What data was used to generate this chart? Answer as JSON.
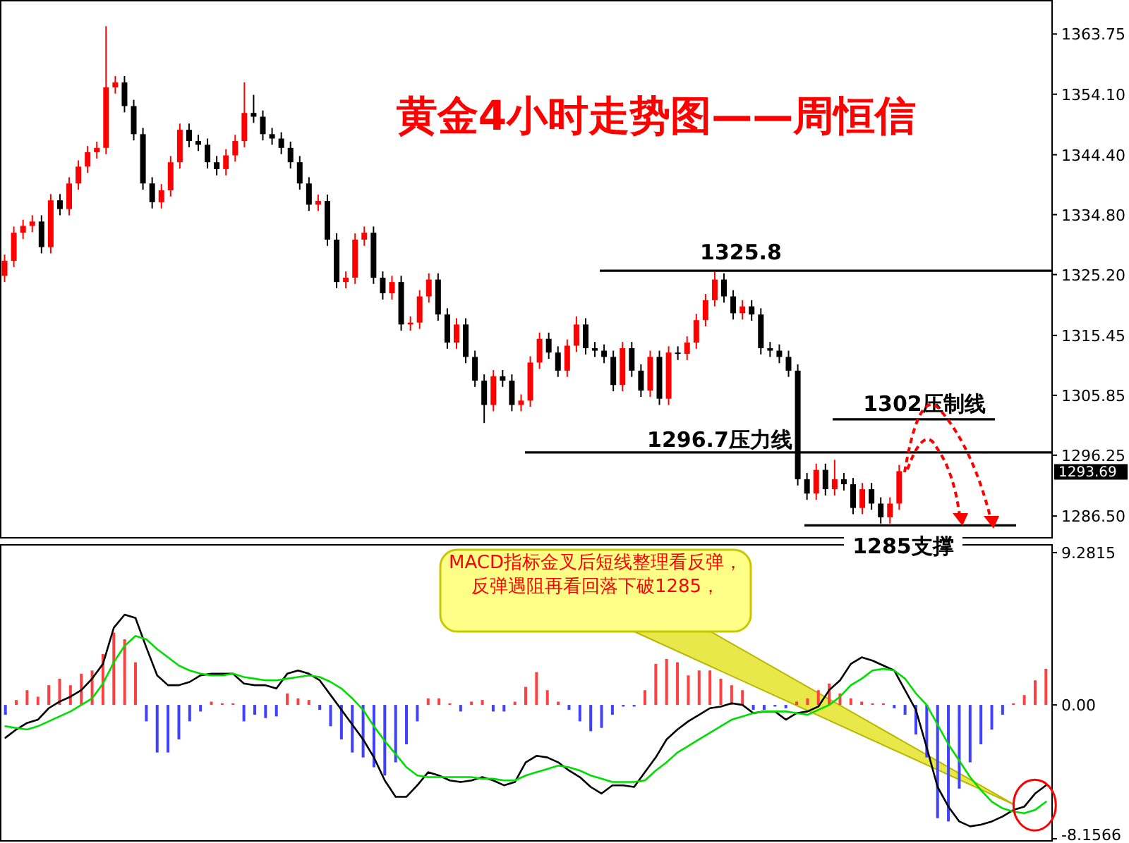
{
  "chart_data": [
    {
      "type": "candlestick",
      "title": "黄金4小时走势图——周恒信",
      "tick_labels": "y",
      "categories": [
        null,
        null,
        null,
        null,
        null,
        null,
        null,
        null,
        null,
        null,
        null,
        null,
        null,
        null,
        null,
        null,
        null,
        null,
        null,
        null,
        null,
        null,
        null,
        null,
        null,
        null,
        null,
        null,
        null,
        null,
        null,
        null,
        null,
        null,
        null,
        null,
        null,
        null,
        null,
        null,
        null,
        null,
        null,
        null,
        null,
        null,
        null,
        null,
        null,
        null,
        null,
        null,
        null,
        null,
        null,
        null,
        null,
        null,
        null,
        null,
        null,
        null,
        null,
        null,
        null,
        null,
        null,
        null,
        null,
        null,
        null,
        null,
        null,
        null,
        null,
        null,
        null,
        null,
        null,
        null,
        null,
        null,
        null,
        null,
        null,
        null,
        null,
        null,
        null,
        null,
        null,
        null,
        null,
        null,
        null,
        null,
        null,
        null,
        null,
        null,
        null,
        null,
        null,
        null,
        null,
        null,
        null,
        null,
        null,
        null,
        null,
        null,
        null,
        null
      ],
      "ohlc": [
        [
          1325.0,
          1328.4,
          1324.0,
          1327.4
        ],
        [
          1327.4,
          1332.9,
          1326.4,
          1331.9
        ],
        [
          1331.9,
          1334.0,
          1330.9,
          1333.0
        ],
        [
          1333.0,
          1334.7,
          1332.0,
          1333.7
        ],
        [
          1333.7,
          1334.7,
          1328.6,
          1329.6
        ],
        [
          1329.6,
          1338.1,
          1328.6,
          1337.1
        ],
        [
          1337.1,
          1338.1,
          1334.7,
          1335.7
        ],
        [
          1335.7,
          1340.8,
          1334.7,
          1339.8
        ],
        [
          1339.8,
          1343.5,
          1338.8,
          1342.5
        ],
        [
          1342.5,
          1345.8,
          1341.5,
          1344.8
        ],
        [
          1344.8,
          1346.5,
          1343.8,
          1345.5
        ],
        [
          1345.5,
          1365.0,
          1344.5,
          1355.2
        ],
        [
          1355.2,
          1357.0,
          1354.2,
          1356.0
        ],
        [
          1356.0,
          1357.0,
          1351.2,
          1352.2
        ],
        [
          1352.2,
          1353.2,
          1346.7,
          1347.7
        ],
        [
          1347.7,
          1348.7,
          1338.8,
          1339.8
        ],
        [
          1339.8,
          1340.8,
          1335.8,
          1336.8
        ],
        [
          1336.8,
          1339.7,
          1335.8,
          1338.7
        ],
        [
          1338.7,
          1344.2,
          1337.7,
          1343.2
        ],
        [
          1343.2,
          1349.4,
          1342.2,
          1348.4
        ],
        [
          1348.4,
          1349.4,
          1345.6,
          1346.6
        ],
        [
          1346.6,
          1347.6,
          1345.0,
          1346.0
        ],
        [
          1346.0,
          1347.0,
          1342.2,
          1343.2
        ],
        [
          1343.2,
          1344.2,
          1341.1,
          1342.1
        ],
        [
          1342.1,
          1345.3,
          1341.1,
          1344.3
        ],
        [
          1344.3,
          1347.6,
          1343.3,
          1346.6
        ],
        [
          1346.6,
          1356.0,
          1345.6,
          1351.1
        ],
        [
          1351.1,
          1354.0,
          1349.5,
          1350.5
        ],
        [
          1350.5,
          1351.5,
          1346.7,
          1347.7
        ],
        [
          1347.7,
          1348.7,
          1346.0,
          1347.0
        ],
        [
          1347.0,
          1348.0,
          1344.5,
          1345.5
        ],
        [
          1345.5,
          1346.5,
          1342.2,
          1343.2
        ],
        [
          1343.2,
          1344.2,
          1338.8,
          1339.8
        ],
        [
          1339.8,
          1340.8,
          1335.4,
          1336.4
        ],
        [
          1336.4,
          1338.0,
          1335.4,
          1337.0
        ],
        [
          1337.0,
          1338.0,
          1329.8,
          1330.8
        ],
        [
          1330.8,
          1331.8,
          1323.0,
          1324.0
        ],
        [
          1324.0,
          1325.7,
          1323.0,
          1324.7
        ],
        [
          1324.7,
          1331.8,
          1323.7,
          1330.8
        ],
        [
          1330.8,
          1332.9,
          1329.8,
          1331.9
        ],
        [
          1331.9,
          1332.9,
          1323.7,
          1324.7
        ],
        [
          1324.7,
          1325.7,
          1321.2,
          1322.2
        ],
        [
          1322.2,
          1325.0,
          1321.2,
          1324.0
        ],
        [
          1324.0,
          1325.0,
          1316.2,
          1317.2
        ],
        [
          1317.2,
          1318.5,
          1316.2,
          1317.5
        ],
        [
          1317.5,
          1322.7,
          1316.5,
          1321.7
        ],
        [
          1321.7,
          1325.4,
          1320.7,
          1324.4
        ],
        [
          1324.4,
          1325.4,
          1317.8,
          1318.8
        ],
        [
          1318.8,
          1319.8,
          1313.3,
          1314.3
        ],
        [
          1314.3,
          1318.2,
          1313.3,
          1317.2
        ],
        [
          1317.2,
          1318.2,
          1311.0,
          1312.0
        ],
        [
          1312.0,
          1313.0,
          1307.2,
          1308.2
        ],
        [
          1308.2,
          1309.2,
          1301.4,
          1304.3
        ],
        [
          1304.3,
          1309.9,
          1303.3,
          1308.9
        ],
        [
          1308.9,
          1309.9,
          1307.2,
          1308.2
        ],
        [
          1308.2,
          1309.2,
          1303.3,
          1304.3
        ],
        [
          1304.3,
          1306.0,
          1303.3,
          1305.0
        ],
        [
          1305.0,
          1312.1,
          1304.0,
          1311.1
        ],
        [
          1311.1,
          1315.9,
          1310.1,
          1314.9
        ],
        [
          1314.9,
          1315.9,
          1311.7,
          1312.7
        ],
        [
          1312.7,
          1313.7,
          1308.8,
          1309.8
        ],
        [
          1309.8,
          1314.8,
          1308.8,
          1313.8
        ],
        [
          1313.8,
          1318.5,
          1312.8,
          1317.2
        ],
        [
          1317.2,
          1318.2,
          1312.4,
          1313.4
        ],
        [
          1313.4,
          1314.4,
          1312.0,
          1313.0
        ],
        [
          1313.0,
          1314.0,
          1311.0,
          1312.0
        ],
        [
          1312.0,
          1313.0,
          1306.5,
          1307.5
        ],
        [
          1307.5,
          1314.4,
          1306.5,
          1313.4
        ],
        [
          1313.4,
          1314.4,
          1308.8,
          1309.8
        ],
        [
          1309.8,
          1310.8,
          1305.6,
          1306.6
        ],
        [
          1306.6,
          1313.0,
          1305.6,
          1312.0
        ],
        [
          1312.0,
          1313.0,
          1304.3,
          1305.3
        ],
        [
          1305.3,
          1313.7,
          1304.3,
          1312.7
        ],
        [
          1312.7,
          1313.7,
          1311.5,
          1312.5
        ],
        [
          1312.5,
          1315.3,
          1311.5,
          1314.3
        ],
        [
          1314.3,
          1318.9,
          1313.3,
          1317.9
        ],
        [
          1317.9,
          1322.1,
          1316.9,
          1321.1
        ],
        [
          1321.1,
          1325.6,
          1320.1,
          1324.4
        ],
        [
          1324.4,
          1325.4,
          1320.7,
          1321.7
        ],
        [
          1321.7,
          1322.7,
          1318.0,
          1319.0
        ],
        [
          1319.0,
          1321.1,
          1318.0,
          1320.1
        ],
        [
          1320.1,
          1321.1,
          1317.8,
          1318.8
        ],
        [
          1318.8,
          1319.8,
          1312.4,
          1313.4
        ],
        [
          1313.4,
          1314.4,
          1312.0,
          1313.0
        ],
        [
          1313.0,
          1314.0,
          1311.0,
          1312.0
        ],
        [
          1312.0,
          1313.0,
          1308.8,
          1309.8
        ],
        [
          1309.8,
          1310.8,
          1291.4,
          1292.4
        ],
        [
          1292.4,
          1293.4,
          1289.1,
          1290.1
        ],
        [
          1290.1,
          1294.9,
          1289.1,
          1293.9
        ],
        [
          1293.9,
          1294.9,
          1289.8,
          1290.8
        ],
        [
          1290.8,
          1295.5,
          1289.8,
          1292.4
        ],
        [
          1292.4,
          1293.4,
          1290.6,
          1291.6
        ],
        [
          1291.6,
          1292.6,
          1286.8,
          1287.8
        ],
        [
          1287.8,
          1291.8,
          1286.8,
          1290.8
        ],
        [
          1290.8,
          1291.8,
          1287.5,
          1288.5
        ],
        [
          1288.5,
          1289.5,
          1285.3,
          1286.3
        ],
        [
          1286.3,
          1289.5,
          1285.3,
          1288.5
        ],
        [
          1288.5,
          1294.7,
          1287.5,
          1293.69
        ],
        null,
        null,
        null,
        null,
        null,
        null,
        null,
        null,
        null,
        null,
        null,
        null,
        null,
        null,
        null,
        null
      ],
      "colors": [
        "#ff0000",
        "#ff0000",
        "#ff0000",
        "#ff0000",
        "#000000",
        "#ff0000",
        "#000000",
        "#ff0000",
        "#ff0000",
        "#ff0000",
        "#ff0000",
        "#ff0000",
        "#ff0000",
        "#000000",
        "#000000",
        "#000000",
        "#000000",
        "#ff0000",
        "#ff0000",
        "#ff0000",
        "#000000",
        "#000000",
        "#000000",
        "#000000",
        "#ff0000",
        "#ff0000",
        "#ff0000",
        "#000000",
        "#000000",
        "#000000",
        "#000000",
        "#000000",
        "#000000",
        "#000000",
        "#ff0000",
        "#000000",
        "#000000",
        "#ff0000",
        "#ff0000",
        "#ff0000",
        "#000000",
        "#000000",
        "#ff0000",
        "#000000",
        "#ff0000",
        "#ff0000",
        "#ff0000",
        "#000000",
        "#000000",
        "#ff0000",
        "#000000",
        "#000000",
        "#000000",
        "#ff0000",
        "#000000",
        "#000000",
        "#ff0000",
        "#ff0000",
        "#ff0000",
        "#000000",
        "#000000",
        "#ff0000",
        "#ff0000",
        "#000000",
        "#000000",
        "#000000",
        "#000000",
        "#ff0000",
        "#000000",
        "#000000",
        "#ff0000",
        "#000000",
        "#ff0000",
        "#000000",
        "#ff0000",
        "#ff0000",
        "#ff0000",
        "#ff0000",
        "#000000",
        "#000000",
        "#ff0000",
        "#000000",
        "#000000",
        "#000000",
        "#000000",
        "#000000",
        "#000000",
        "#000000",
        "#ff0000",
        "#000000",
        "#ff0000",
        "#000000",
        "#000000",
        "#ff0000",
        "#000000",
        "#000000",
        "#ff0000",
        "#ff0000",
        null,
        null,
        null,
        null,
        null,
        null,
        null,
        null,
        null,
        null,
        null,
        null,
        null,
        null,
        null,
        null
      ],
      "ylim": [
        1282.9,
        1369.2
      ],
      "yticks": [
        1363.75,
        {
          "value": 1354.1,
          "label": "1354.10"
        },
        {
          "value": 1344.4,
          "label": "1344.40"
        },
        {
          "value": 1334.8,
          "label": "1334.80"
        },
        {
          "value": 1325.2,
          "label": "1325.20"
        },
        1315.45,
        1305.85,
        1296.25,
        {
          "value": 1286.5,
          "label": "1286.50"
        }
      ],
      "ref_lines": [
        {
          "axis": "y",
          "value": 1325.8,
          "label": "1325.8",
          "color": "#000000"
        },
        {
          "axis": "y",
          "value": 1302,
          "label": "1302压制线",
          "color": "#000000"
        },
        {
          "axis": "y",
          "value": 1296.7,
          "label": "1296.7压力线",
          "color": "#000000"
        },
        {
          "axis": "y",
          "value": 1285,
          "label": "1285支撑",
          "color": "#000000"
        }
      ],
      "annotations": [
        "1293.69"
      ]
    },
    {
      "type": "bar",
      "tick_labels": "y",
      "categories": [
        null,
        null,
        null,
        null,
        null,
        null,
        null,
        null,
        null,
        null,
        null,
        null,
        null,
        null,
        null,
        null,
        null,
        null,
        null,
        null,
        null,
        null,
        null,
        null,
        null,
        null,
        null,
        null,
        null,
        null,
        null,
        null,
        null,
        null,
        null,
        null,
        null,
        null,
        null,
        null,
        null,
        null,
        null,
        null,
        null,
        null,
        null,
        null,
        null,
        null,
        null,
        null,
        null,
        null,
        null,
        null,
        null,
        null,
        null,
        null,
        null,
        null,
        null,
        null,
        null,
        null,
        null,
        null,
        null,
        null,
        null,
        null,
        null,
        null,
        null,
        null,
        null,
        null,
        null,
        null,
        null,
        null,
        null,
        null,
        null,
        null,
        null,
        null,
        null,
        null,
        null,
        null,
        null,
        null,
        null,
        null,
        null
      ],
      "series": [
        {
          "values": [
            -0.6,
            0.3,
            0.9,
            0.5,
            1.2,
            1.6,
            1.2,
            1.9,
            2.1,
            3.1,
            4.4,
            4.0,
            2.6,
            -1.0,
            -2.9,
            -2.9,
            -2.1,
            -1.0,
            -0.4,
            0.2,
            0.1,
            0.1,
            -1.0,
            -0.6,
            -0.8,
            -0.7,
            0.7,
            0.4,
            0.3,
            -0.3,
            -1.3,
            -2.1,
            -2.9,
            -3.2,
            -3.8,
            -4.3,
            -3.5,
            -2.4,
            -1.0,
            0.4,
            0.4,
            0.1,
            -0.4,
            0.2,
            0.3,
            -0.4,
            -0.4,
            0.2,
            1.1,
            2.0,
            0.9,
            0.2,
            -0.3,
            -1.0,
            -1.6,
            -1.4,
            -0.6,
            -0.1,
            -0.1,
            0.9,
            2.5,
            2.8,
            2.6,
            1.8,
            2.1,
            2.1,
            1.6,
            1.2,
            0.9,
            -0.3,
            -0.3,
            -0.1,
            -0.2,
            0.2,
            0.4,
            0.9,
            1.3,
            0.7,
            0.4,
            0.2,
            0.1,
            0.1,
            -0.2,
            -0.6,
            -1.8,
            -3.2,
            -6.9,
            -7.1,
            -5.1,
            -3.5,
            -2.4,
            -1.5,
            -0.6,
            0.1,
            0.6,
            1.5,
            2.2
          ],
          "colors": [
            "#4040ff",
            "#ff4040",
            "#ff4040",
            "#ff4040",
            "#ff4040",
            "#ff4040",
            "#ff4040",
            "#ff4040",
            "#ff4040",
            "#ff4040",
            "#ff4040",
            "#ff4040",
            "#ff4040",
            "#4040ff",
            "#4040ff",
            "#4040ff",
            "#4040ff",
            "#4040ff",
            "#4040ff",
            "#ff4040",
            "#ff4040",
            "#ff4040",
            "#4040ff",
            "#4040ff",
            "#4040ff",
            "#4040ff",
            "#ff4040",
            "#ff4040",
            "#ff4040",
            "#4040ff",
            "#4040ff",
            "#4040ff",
            "#4040ff",
            "#4040ff",
            "#4040ff",
            "#4040ff",
            "#4040ff",
            "#4040ff",
            "#4040ff",
            "#ff4040",
            "#ff4040",
            "#ff4040",
            "#4040ff",
            "#ff4040",
            "#ff4040",
            "#4040ff",
            "#4040ff",
            "#ff4040",
            "#ff4040",
            "#ff4040",
            "#ff4040",
            "#ff4040",
            "#4040ff",
            "#4040ff",
            "#4040ff",
            "#4040ff",
            "#4040ff",
            "#4040ff",
            "#4040ff",
            "#ff4040",
            "#ff4040",
            "#ff4040",
            "#ff4040",
            "#ff4040",
            "#ff4040",
            "#ff4040",
            "#ff4040",
            "#ff4040",
            "#ff4040",
            "#4040ff",
            "#4040ff",
            "#4040ff",
            "#4040ff",
            "#ff4040",
            "#ff4040",
            "#ff4040",
            "#ff4040",
            "#ff4040",
            "#ff4040",
            "#ff4040",
            "#ff4040",
            "#ff4040",
            "#4040ff",
            "#4040ff",
            "#4040ff",
            "#4040ff",
            "#4040ff",
            "#4040ff",
            "#4040ff",
            "#4040ff",
            "#4040ff",
            "#4040ff",
            "#4040ff",
            "#ff4040",
            "#ff4040",
            "#ff4040",
            "#ff4040"
          ]
        },
        {
          "type": "line",
          "color": "#000000",
          "values": [
            -2.0,
            -1.5,
            -1.1,
            -0.9,
            -0.2,
            0.2,
            0.5,
            0.9,
            1.6,
            2.5,
            4.7,
            5.5,
            5.3,
            3.5,
            1.8,
            1.2,
            1.2,
            1.4,
            1.8,
            1.9,
            1.9,
            1.9,
            1.3,
            1.2,
            1.2,
            1.0,
            1.9,
            2.1,
            1.9,
            1.5,
            0.6,
            -0.3,
            -1.2,
            -2.1,
            -3.2,
            -4.6,
            -5.6,
            -5.6,
            -4.9,
            -4.1,
            -4.3,
            -4.6,
            -4.7,
            -4.6,
            -4.4,
            -4.6,
            -4.9,
            -4.7,
            -3.5,
            -3.1,
            -3.2,
            -3.5,
            -4.0,
            -4.4,
            -5.0,
            -5.4,
            -4.9,
            -4.9,
            -5.0,
            -4.1,
            -3.2,
            -2.1,
            -1.5,
            -1.0,
            -0.6,
            -0.2,
            -0.1,
            0.1,
            0.0,
            -0.5,
            -0.4,
            -0.4,
            -0.9,
            -0.5,
            -0.4,
            -0.1,
            0.9,
            1.5,
            2.5,
            2.9,
            2.7,
            2.4,
            2.1,
            0.9,
            -0.3,
            -2.6,
            -5.0,
            -6.2,
            -7.1,
            -7.4,
            -7.3,
            -7.1,
            -6.8,
            -6.4,
            -6.2,
            -5.4,
            -4.9
          ]
        },
        {
          "type": "line",
          "color": "#00dd00",
          "values": [
            -1.3,
            -1.4,
            -1.5,
            -1.3,
            -1.0,
            -0.7,
            -0.4,
            0.0,
            0.4,
            1.3,
            2.6,
            3.6,
            4.2,
            4.0,
            3.4,
            2.9,
            2.4,
            2.1,
            1.9,
            1.8,
            1.8,
            1.9,
            1.7,
            1.6,
            1.5,
            1.5,
            1.6,
            1.7,
            1.8,
            1.7,
            1.4,
            1.0,
            0.4,
            -0.3,
            -1.3,
            -2.2,
            -3.0,
            -3.8,
            -4.3,
            -4.4,
            -4.4,
            -4.4,
            -4.4,
            -4.4,
            -4.5,
            -4.5,
            -4.6,
            -4.6,
            -4.3,
            -4.1,
            -3.9,
            -3.7,
            -3.8,
            -4.0,
            -4.3,
            -4.5,
            -4.7,
            -4.7,
            -4.7,
            -4.6,
            -4.0,
            -3.5,
            -2.9,
            -2.5,
            -2.1,
            -1.7,
            -1.3,
            -0.9,
            -0.7,
            -0.5,
            -0.4,
            -0.4,
            -0.4,
            -0.5,
            -0.6,
            -0.3,
            0.0,
            0.5,
            1.2,
            1.6,
            2.1,
            2.2,
            2.1,
            1.6,
            0.7,
            0.0,
            -1.2,
            -2.4,
            -3.4,
            -4.4,
            -5.2,
            -5.9,
            -6.3,
            -6.5,
            -6.6,
            -6.4,
            -5.9
          ]
        }
      ],
      "ylim": [
        -8.1566,
        9.2815
      ],
      "yticks": [
        9.2815,
        {
          "value": 0,
          "label": "0.00"
        },
        {
          "value": -8.1566,
          "label": "-8.1566"
        }
      ],
      "annotations": [
        "MACD指标金叉后短线整理看反弹，反弹遇阻再看回落下破1285，"
      ]
    }
  ]
}
